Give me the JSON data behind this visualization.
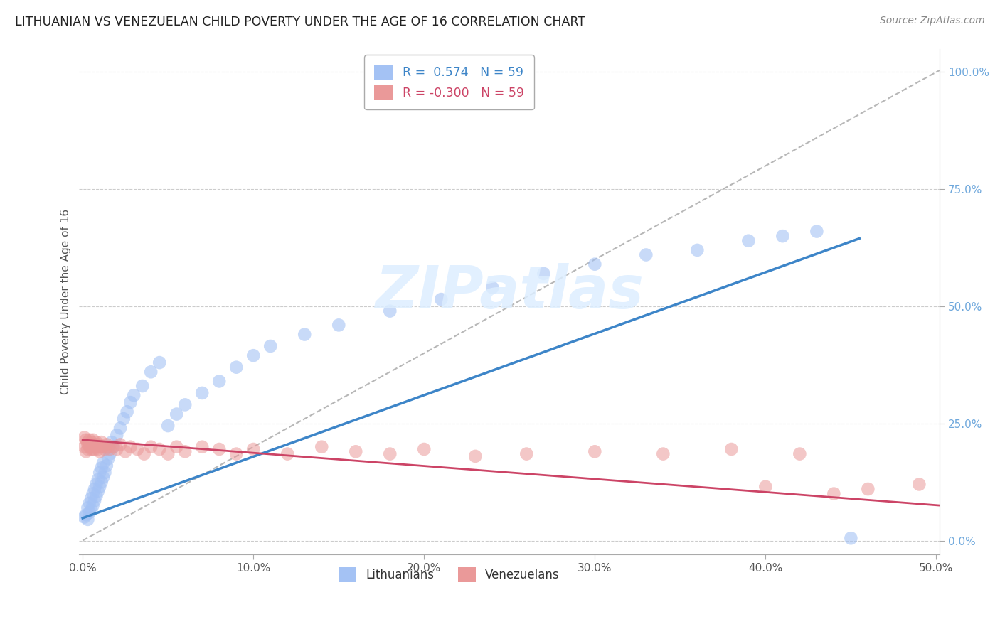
{
  "title": "LITHUANIAN VS VENEZUELAN CHILD POVERTY UNDER THE AGE OF 16 CORRELATION CHART",
  "source": "Source: ZipAtlas.com",
  "ylabel": "Child Poverty Under the Age of 16",
  "xlim": [
    -0.002,
    0.502
  ],
  "ylim": [
    -0.03,
    1.05
  ],
  "xticks": [
    0.0,
    0.1,
    0.2,
    0.3,
    0.4,
    0.5
  ],
  "yticks_right": [
    0.0,
    0.25,
    0.5,
    0.75,
    1.0
  ],
  "watermark_text": "ZIPatlas",
  "scatter_lit_color": "#a4c2f4",
  "scatter_ven_color": "#ea9999",
  "line_lit_color": "#3d85c8",
  "line_ven_color": "#cc4466",
  "diag_line_color": "#b7b7b7",
  "background_color": "#ffffff",
  "legend_r1": "R =  0.574",
  "legend_n1": "N = 59",
  "legend_r2": "R = -0.300",
  "legend_n2": "N = 59",
  "lit_line_x0": 0.0,
  "lit_line_y0": 0.048,
  "lit_line_x1": 0.455,
  "lit_line_y1": 0.645,
  "ven_line_x0": 0.0,
  "ven_line_y0": 0.215,
  "ven_line_x1": 0.502,
  "ven_line_y1": 0.075,
  "lit_x": [
    0.001,
    0.002,
    0.003,
    0.003,
    0.004,
    0.004,
    0.005,
    0.005,
    0.006,
    0.006,
    0.007,
    0.007,
    0.008,
    0.008,
    0.009,
    0.009,
    0.01,
    0.01,
    0.011,
    0.011,
    0.012,
    0.012,
    0.013,
    0.014,
    0.015,
    0.015,
    0.016,
    0.017,
    0.018,
    0.02,
    0.022,
    0.024,
    0.026,
    0.028,
    0.03,
    0.035,
    0.04,
    0.045,
    0.05,
    0.055,
    0.06,
    0.07,
    0.08,
    0.09,
    0.1,
    0.11,
    0.13,
    0.15,
    0.18,
    0.21,
    0.24,
    0.27,
    0.3,
    0.33,
    0.36,
    0.39,
    0.41,
    0.43,
    0.45
  ],
  "lit_y": [
    0.05,
    0.055,
    0.045,
    0.07,
    0.06,
    0.08,
    0.065,
    0.09,
    0.075,
    0.1,
    0.085,
    0.11,
    0.095,
    0.12,
    0.105,
    0.13,
    0.115,
    0.145,
    0.125,
    0.155,
    0.135,
    0.165,
    0.145,
    0.16,
    0.175,
    0.195,
    0.185,
    0.21,
    0.2,
    0.225,
    0.24,
    0.26,
    0.275,
    0.295,
    0.31,
    0.33,
    0.36,
    0.38,
    0.245,
    0.27,
    0.29,
    0.315,
    0.34,
    0.37,
    0.395,
    0.415,
    0.44,
    0.46,
    0.49,
    0.515,
    0.54,
    0.57,
    0.59,
    0.61,
    0.62,
    0.64,
    0.65,
    0.66,
    0.005
  ],
  "ven_x": [
    0.001,
    0.001,
    0.002,
    0.002,
    0.003,
    0.003,
    0.003,
    0.004,
    0.004,
    0.005,
    0.005,
    0.005,
    0.006,
    0.006,
    0.007,
    0.007,
    0.008,
    0.008,
    0.009,
    0.009,
    0.01,
    0.01,
    0.011,
    0.012,
    0.013,
    0.014,
    0.015,
    0.016,
    0.018,
    0.02,
    0.022,
    0.025,
    0.028,
    0.032,
    0.036,
    0.04,
    0.045,
    0.05,
    0.055,
    0.06,
    0.07,
    0.08,
    0.09,
    0.1,
    0.12,
    0.14,
    0.16,
    0.18,
    0.2,
    0.23,
    0.26,
    0.3,
    0.34,
    0.38,
    0.42,
    0.44,
    0.46,
    0.49,
    0.4
  ],
  "ven_y": [
    0.2,
    0.22,
    0.19,
    0.215,
    0.205,
    0.195,
    0.21,
    0.2,
    0.215,
    0.195,
    0.21,
    0.2,
    0.215,
    0.195,
    0.205,
    0.195,
    0.2,
    0.21,
    0.195,
    0.205,
    0.2,
    0.19,
    0.21,
    0.2,
    0.195,
    0.205,
    0.2,
    0.195,
    0.2,
    0.195,
    0.205,
    0.19,
    0.2,
    0.195,
    0.185,
    0.2,
    0.195,
    0.185,
    0.2,
    0.19,
    0.2,
    0.195,
    0.185,
    0.195,
    0.185,
    0.2,
    0.19,
    0.185,
    0.195,
    0.18,
    0.185,
    0.19,
    0.185,
    0.195,
    0.185,
    0.1,
    0.11,
    0.12,
    0.115
  ]
}
